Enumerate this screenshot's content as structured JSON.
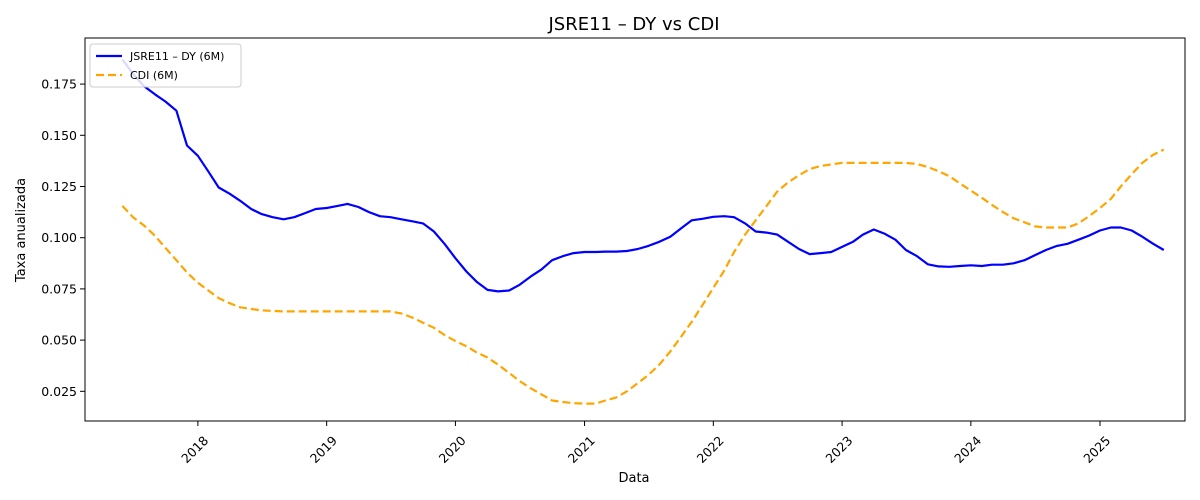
{
  "chart_data": {
    "type": "line",
    "title": "JSRE11 – DY vs CDI",
    "xlabel": "Data",
    "ylabel": "Taxa anualizada",
    "xlim": [
      "2017-02-15",
      "2025-08-30"
    ],
    "ylim": [
      0.0105,
      0.1975
    ],
    "x_ticks": [
      "2018",
      "2019",
      "2020",
      "2021",
      "2022",
      "2023",
      "2024",
      "2025"
    ],
    "y_ticks": [
      "0.025",
      "0.050",
      "0.075",
      "0.100",
      "0.125",
      "0.150",
      "0.175"
    ],
    "grid": false,
    "legend_position": "top-left",
    "series": [
      {
        "name": "JSRE11 – DY (6M)",
        "color": "#0000ff",
        "style": "solid",
        "points": [
          [
            "2017-06-01",
            0.187
          ],
          [
            "2017-07-01",
            0.18
          ],
          [
            "2017-08-01",
            0.174
          ],
          [
            "2017-09-01",
            0.17
          ],
          [
            "2017-10-01",
            0.1665
          ],
          [
            "2017-11-01",
            0.162
          ],
          [
            "2017-12-01",
            0.145
          ],
          [
            "2018-01-01",
            0.14
          ],
          [
            "2018-02-01",
            0.132
          ],
          [
            "2018-03-01",
            0.1245
          ],
          [
            "2018-04-01",
            0.1215
          ],
          [
            "2018-05-01",
            0.118
          ],
          [
            "2018-06-01",
            0.114
          ],
          [
            "2018-07-01",
            0.1115
          ],
          [
            "2018-08-01",
            0.11
          ],
          [
            "2018-09-01",
            0.109
          ],
          [
            "2018-10-01",
            0.11
          ],
          [
            "2018-11-01",
            0.112
          ],
          [
            "2018-12-01",
            0.114
          ],
          [
            "2019-01-01",
            0.1145
          ],
          [
            "2019-02-01",
            0.1155
          ],
          [
            "2019-03-01",
            0.1165
          ],
          [
            "2019-04-01",
            0.115
          ],
          [
            "2019-05-01",
            0.1125
          ],
          [
            "2019-06-01",
            0.1105
          ],
          [
            "2019-07-01",
            0.11
          ],
          [
            "2019-08-01",
            0.109
          ],
          [
            "2019-09-01",
            0.108
          ],
          [
            "2019-10-01",
            0.107
          ],
          [
            "2019-11-01",
            0.103
          ],
          [
            "2019-12-01",
            0.097
          ],
          [
            "2020-01-01",
            0.09
          ],
          [
            "2020-02-01",
            0.0835
          ],
          [
            "2020-03-01",
            0.0785
          ],
          [
            "2020-04-01",
            0.0745
          ],
          [
            "2020-05-01",
            0.0738
          ],
          [
            "2020-06-01",
            0.0742
          ],
          [
            "2020-07-01",
            0.077
          ],
          [
            "2020-08-01",
            0.081
          ],
          [
            "2020-09-01",
            0.0845
          ],
          [
            "2020-10-01",
            0.089
          ],
          [
            "2020-11-01",
            0.091
          ],
          [
            "2020-12-01",
            0.0925
          ],
          [
            "2021-01-01",
            0.093
          ],
          [
            "2021-02-01",
            0.093
          ],
          [
            "2021-03-01",
            0.0932
          ],
          [
            "2021-04-01",
            0.0932
          ],
          [
            "2021-05-01",
            0.0935
          ],
          [
            "2021-06-01",
            0.0945
          ],
          [
            "2021-07-01",
            0.096
          ],
          [
            "2021-08-01",
            0.098
          ],
          [
            "2021-09-01",
            0.1005
          ],
          [
            "2021-10-01",
            0.1045
          ],
          [
            "2021-11-01",
            0.1085
          ],
          [
            "2021-12-01",
            0.1092
          ],
          [
            "2022-01-01",
            0.1102
          ],
          [
            "2022-02-01",
            0.1105
          ],
          [
            "2022-03-01",
            0.11
          ],
          [
            "2022-04-01",
            0.107
          ],
          [
            "2022-05-01",
            0.103
          ],
          [
            "2022-06-01",
            0.1025
          ],
          [
            "2022-07-01",
            0.1015
          ],
          [
            "2022-08-01",
            0.098
          ],
          [
            "2022-09-01",
            0.0945
          ],
          [
            "2022-10-01",
            0.092
          ],
          [
            "2022-11-01",
            0.0925
          ],
          [
            "2022-12-01",
            0.093
          ],
          [
            "2023-01-01",
            0.0955
          ],
          [
            "2023-02-01",
            0.098
          ],
          [
            "2023-03-01",
            0.1015
          ],
          [
            "2023-04-01",
            0.104
          ],
          [
            "2023-05-01",
            0.102
          ],
          [
            "2023-06-01",
            0.099
          ],
          [
            "2023-07-01",
            0.094
          ],
          [
            "2023-08-01",
            0.091
          ],
          [
            "2023-09-01",
            0.087
          ],
          [
            "2023-10-01",
            0.086
          ],
          [
            "2023-11-01",
            0.0858
          ],
          [
            "2023-12-01",
            0.0862
          ],
          [
            "2024-01-01",
            0.0865
          ],
          [
            "2024-02-01",
            0.0862
          ],
          [
            "2024-03-01",
            0.0868
          ],
          [
            "2024-04-01",
            0.0868
          ],
          [
            "2024-05-01",
            0.0875
          ],
          [
            "2024-06-01",
            0.089
          ],
          [
            "2024-07-01",
            0.0915
          ],
          [
            "2024-08-01",
            0.094
          ],
          [
            "2024-09-01",
            0.096
          ],
          [
            "2024-10-01",
            0.097
          ],
          [
            "2024-11-01",
            0.099
          ],
          [
            "2024-12-01",
            0.101
          ],
          [
            "2025-01-01",
            0.1035
          ],
          [
            "2025-02-01",
            0.105
          ],
          [
            "2025-03-01",
            0.105
          ],
          [
            "2025-04-01",
            0.1035
          ],
          [
            "2025-05-01",
            0.1005
          ],
          [
            "2025-06-01",
            0.097
          ],
          [
            "2025-07-01",
            0.094
          ]
        ]
      },
      {
        "name": "CDI (6M)",
        "color": "#ffa500",
        "style": "dashed",
        "points": [
          [
            "2017-06-01",
            0.1155
          ],
          [
            "2017-07-01",
            0.11
          ],
          [
            "2017-08-01",
            0.106
          ],
          [
            "2017-09-01",
            0.101
          ],
          [
            "2017-10-01",
            0.095
          ],
          [
            "2017-11-01",
            0.089
          ],
          [
            "2017-12-01",
            0.083
          ],
          [
            "2018-01-01",
            0.078
          ],
          [
            "2018-02-01",
            0.074
          ],
          [
            "2018-03-01",
            0.0705
          ],
          [
            "2018-04-01",
            0.068
          ],
          [
            "2018-05-01",
            0.066
          ],
          [
            "2018-06-01",
            0.0652
          ],
          [
            "2018-07-01",
            0.0645
          ],
          [
            "2018-09-01",
            0.064
          ],
          [
            "2019-01-01",
            0.064
          ],
          [
            "2019-07-01",
            0.064
          ],
          [
            "2019-08-01",
            0.063
          ],
          [
            "2019-09-01",
            0.061
          ],
          [
            "2019-10-01",
            0.0585
          ],
          [
            "2019-11-01",
            0.056
          ],
          [
            "2019-12-01",
            0.0525
          ],
          [
            "2020-01-01",
            0.0495
          ],
          [
            "2020-02-01",
            0.047
          ],
          [
            "2020-03-01",
            0.044
          ],
          [
            "2020-04-01",
            0.0415
          ],
          [
            "2020-05-01",
            0.038
          ],
          [
            "2020-06-01",
            0.034
          ],
          [
            "2020-07-01",
            0.03
          ],
          [
            "2020-08-01",
            0.0265
          ],
          [
            "2020-09-01",
            0.0235
          ],
          [
            "2020-10-01",
            0.0205
          ],
          [
            "2020-11-01",
            0.0198
          ],
          [
            "2020-12-01",
            0.0192
          ],
          [
            "2021-01-01",
            0.019
          ],
          [
            "2021-02-01",
            0.019
          ],
          [
            "2021-03-01",
            0.0205
          ],
          [
            "2021-04-01",
            0.022
          ],
          [
            "2021-05-01",
            0.025
          ],
          [
            "2021-06-01",
            0.029
          ],
          [
            "2021-07-01",
            0.033
          ],
          [
            "2021-08-01",
            0.038
          ],
          [
            "2021-09-01",
            0.0445
          ],
          [
            "2021-10-01",
            0.0515
          ],
          [
            "2021-11-01",
            0.059
          ],
          [
            "2021-12-01",
            0.067
          ],
          [
            "2022-01-01",
            0.0755
          ],
          [
            "2022-02-01",
            0.084
          ],
          [
            "2022-03-01",
            0.093
          ],
          [
            "2022-04-01",
            0.1015
          ],
          [
            "2022-05-01",
            0.1085
          ],
          [
            "2022-06-01",
            0.1155
          ],
          [
            "2022-07-01",
            0.1225
          ],
          [
            "2022-08-01",
            0.127
          ],
          [
            "2022-09-01",
            0.1305
          ],
          [
            "2022-10-01",
            0.1335
          ],
          [
            "2022-11-01",
            0.135
          ],
          [
            "2022-12-01",
            0.1358
          ],
          [
            "2023-01-01",
            0.1365
          ],
          [
            "2023-03-01",
            0.1365
          ],
          [
            "2023-07-01",
            0.1365
          ],
          [
            "2023-08-01",
            0.136
          ],
          [
            "2023-09-01",
            0.1345
          ],
          [
            "2023-10-01",
            0.1325
          ],
          [
            "2023-11-01",
            0.13
          ],
          [
            "2023-12-01",
            0.1265
          ],
          [
            "2024-01-01",
            0.123
          ],
          [
            "2024-02-01",
            0.1195
          ],
          [
            "2024-03-01",
            0.116
          ],
          [
            "2024-04-01",
            0.1125
          ],
          [
            "2024-05-01",
            0.1095
          ],
          [
            "2024-06-01",
            0.1075
          ],
          [
            "2024-07-01",
            0.1055
          ],
          [
            "2024-08-01",
            0.105
          ],
          [
            "2024-09-01",
            0.105
          ],
          [
            "2024-10-01",
            0.105
          ],
          [
            "2024-11-01",
            0.107
          ],
          [
            "2024-12-01",
            0.1105
          ],
          [
            "2025-01-01",
            0.1145
          ],
          [
            "2025-02-01",
            0.119
          ],
          [
            "2025-03-01",
            0.125
          ],
          [
            "2025-04-01",
            0.131
          ],
          [
            "2025-05-01",
            0.1365
          ],
          [
            "2025-06-01",
            0.1405
          ],
          [
            "2025-07-01",
            0.143
          ]
        ]
      }
    ]
  }
}
